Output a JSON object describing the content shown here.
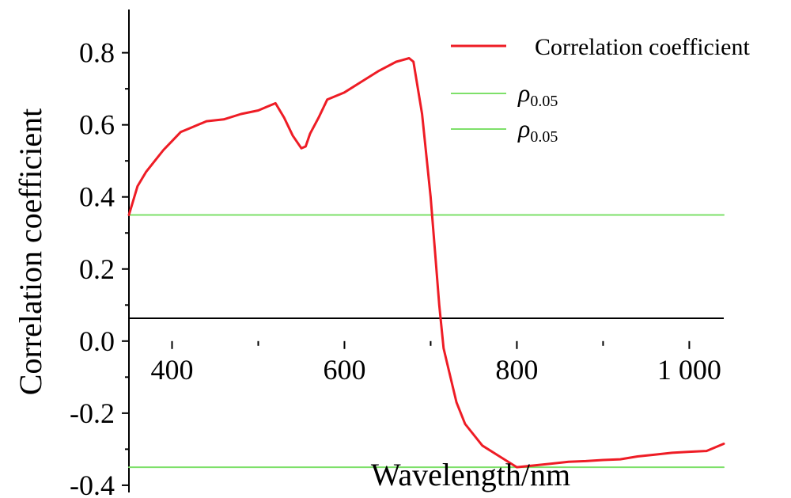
{
  "chart_data": {
    "type": "line",
    "title": "",
    "xlabel": "Wavelength/nm",
    "ylabel": "Correlation coefficient",
    "xlim": [
      350,
      1040
    ],
    "ylim": [
      -0.42,
      0.92
    ],
    "x_ticks": [
      400,
      600,
      800,
      1000
    ],
    "x_tick_labels": [
      "400",
      "600",
      "800",
      "1 000"
    ],
    "y_ticks": [
      -0.4,
      -0.2,
      0.0,
      0.2,
      0.4,
      0.6,
      0.8
    ],
    "y_tick_labels": [
      "-0.4",
      "-0.2",
      "0.0",
      "0.2",
      "0.4",
      "0.6",
      "0.8"
    ],
    "legend_position": "top-right",
    "grid": false,
    "series": [
      {
        "name": "Correlation coefficient",
        "color": "#ee1c25",
        "x": [
          350,
          360,
          370,
          380,
          390,
          400,
          410,
          420,
          440,
          460,
          480,
          500,
          510,
          520,
          530,
          540,
          550,
          555,
          560,
          570,
          580,
          600,
          620,
          640,
          660,
          675,
          680,
          690,
          700,
          705,
          710,
          715,
          720,
          730,
          740,
          760,
          780,
          800,
          820,
          840,
          860,
          880,
          900,
          920,
          940,
          960,
          980,
          1000,
          1020,
          1040
        ],
        "y": [
          0.35,
          0.43,
          0.47,
          0.5,
          0.53,
          0.555,
          0.58,
          0.59,
          0.61,
          0.615,
          0.63,
          0.64,
          0.65,
          0.66,
          0.62,
          0.57,
          0.535,
          0.54,
          0.575,
          0.62,
          0.67,
          0.69,
          0.72,
          0.75,
          0.775,
          0.785,
          0.775,
          0.63,
          0.4,
          0.25,
          0.1,
          -0.02,
          -0.07,
          -0.17,
          -0.23,
          -0.29,
          -0.32,
          -0.35,
          -0.345,
          -0.34,
          -0.335,
          -0.333,
          -0.33,
          -0.328,
          -0.32,
          -0.315,
          -0.31,
          -0.307,
          -0.305,
          -0.285
        ]
      },
      {
        "name": "ρ0.05",
        "color": "#7ee06a",
        "x": [
          350,
          1040
        ],
        "y": [
          0.35,
          0.35
        ]
      },
      {
        "name": "ρ0.05",
        "color": "#7ee06a",
        "x": [
          350,
          1040
        ],
        "y": [
          -0.35,
          -0.35
        ]
      }
    ],
    "legend": [
      {
        "label": "Correlation coefficient",
        "color": "#ee1c25",
        "kind": "text"
      },
      {
        "label": "ρ",
        "sub": "0.05",
        "color": "#7ee06a",
        "kind": "rho"
      },
      {
        "label": "ρ",
        "sub": "0.05",
        "color": "#7ee06a",
        "kind": "rho"
      }
    ]
  }
}
